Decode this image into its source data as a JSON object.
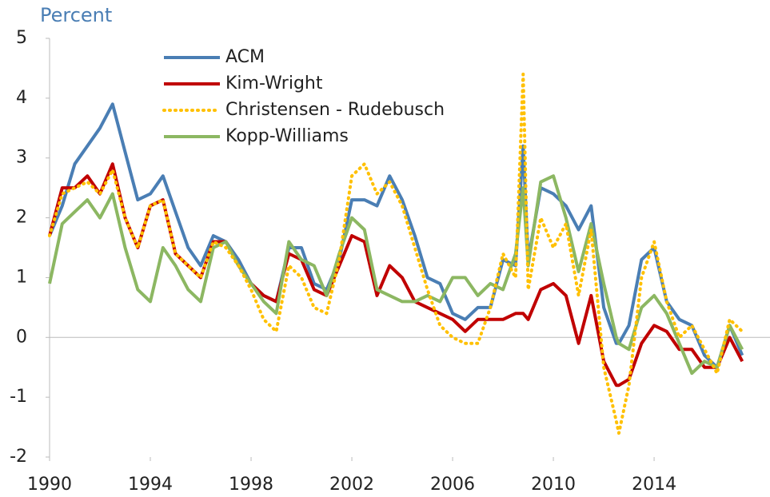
{
  "chart_data": {
    "type": "line",
    "title": "Percent",
    "x": [
      1990,
      1990.5,
      1991,
      1991.5,
      1992,
      1992.5,
      1993,
      1993.5,
      1994,
      1994.5,
      1995,
      1995.5,
      1996,
      1996.5,
      1997,
      1997.5,
      1998,
      1998.5,
      1999,
      1999.5,
      2000,
      2000.5,
      2001,
      2001.5,
      2002,
      2002.5,
      2003,
      2003.5,
      2004,
      2004.5,
      2005,
      2005.5,
      2006,
      2006.5,
      2007,
      2007.5,
      2008,
      2008.5,
      2008.8,
      2009,
      2009.5,
      2010,
      2010.5,
      2011,
      2011.5,
      2012,
      2012.5,
      2012.6,
      2013,
      2013.5,
      2014,
      2014.5,
      2015,
      2015.5,
      2016,
      2016.5,
      2017,
      2017.5
    ],
    "series": [
      {
        "name": "ACM",
        "color": "#4a7eb4",
        "style": "solid",
        "values": [
          1.7,
          2.2,
          2.9,
          3.2,
          3.5,
          3.9,
          3.1,
          2.3,
          2.4,
          2.7,
          2.1,
          1.5,
          1.2,
          1.7,
          1.6,
          1.3,
          0.9,
          0.7,
          0.6,
          1.5,
          1.5,
          0.9,
          0.8,
          1.3,
          2.3,
          2.3,
          2.2,
          2.7,
          2.3,
          1.7,
          1.0,
          0.9,
          0.4,
          0.3,
          0.5,
          0.5,
          1.3,
          1.2,
          3.2,
          1.3,
          2.5,
          2.4,
          2.2,
          1.8,
          2.2,
          0.5,
          -0.1,
          -0.1,
          0.2,
          1.3,
          1.5,
          0.6,
          0.3,
          0.2,
          -0.3,
          -0.5,
          0.2,
          -0.3
        ]
      },
      {
        "name": "Kim-Wright",
        "color": "#c00000",
        "style": "solid",
        "values": [
          1.7,
          2.5,
          2.5,
          2.7,
          2.4,
          2.9,
          2.0,
          1.5,
          2.2,
          2.3,
          1.4,
          1.2,
          1.0,
          1.6,
          1.6,
          1.2,
          0.9,
          0.7,
          0.6,
          1.4,
          1.3,
          0.8,
          0.7,
          1.2,
          1.7,
          1.6,
          0.7,
          1.2,
          1.0,
          0.6,
          0.5,
          0.4,
          0.3,
          0.1,
          0.3,
          0.3,
          0.3,
          0.4,
          0.4,
          0.3,
          0.8,
          0.9,
          0.7,
          -0.1,
          0.7,
          -0.4,
          -0.8,
          -0.8,
          -0.7,
          -0.1,
          0.2,
          0.1,
          -0.2,
          -0.2,
          -0.5,
          -0.5,
          0.0,
          -0.4
        ]
      },
      {
        "name": "Christensen - Rudebusch",
        "color": "#ffc000",
        "style": "dotted",
        "values": [
          1.7,
          2.4,
          2.5,
          2.6,
          2.4,
          2.8,
          2.0,
          1.5,
          2.2,
          2.3,
          1.4,
          1.2,
          1.0,
          1.6,
          1.5,
          1.2,
          0.8,
          0.3,
          0.1,
          1.2,
          1.0,
          0.5,
          0.4,
          1.3,
          2.7,
          2.9,
          2.4,
          2.6,
          2.2,
          1.5,
          0.8,
          0.2,
          0.0,
          -0.1,
          -0.1,
          0.5,
          1.4,
          1.0,
          4.4,
          0.8,
          2.0,
          1.5,
          1.9,
          0.7,
          1.8,
          -0.5,
          -1.4,
          -1.6,
          -0.8,
          1.0,
          1.6,
          0.6,
          0.0,
          0.2,
          -0.2,
          -0.6,
          0.3,
          0.1
        ]
      },
      {
        "name": "Kopp-Williams",
        "color": "#8cb762",
        "style": "solid",
        "values": [
          0.9,
          1.9,
          2.1,
          2.3,
          2.0,
          2.4,
          1.5,
          0.8,
          0.6,
          1.5,
          1.2,
          0.8,
          0.6,
          1.5,
          1.6,
          1.2,
          0.9,
          0.6,
          0.4,
          1.6,
          1.3,
          1.2,
          0.7,
          1.4,
          2.0,
          1.8,
          0.8,
          0.7,
          0.6,
          0.6,
          0.7,
          0.6,
          1.0,
          1.0,
          0.7,
          0.9,
          0.8,
          1.4,
          2.5,
          1.2,
          2.6,
          2.7,
          2.0,
          1.1,
          1.9,
          0.9,
          0.0,
          -0.1,
          -0.2,
          0.5,
          0.7,
          0.4,
          -0.1,
          -0.6,
          -0.4,
          -0.5,
          0.2,
          -0.2
        ]
      }
    ],
    "xlim": [
      1990,
      2018.6
    ],
    "xticks": [
      1990,
      1994,
      1998,
      2002,
      2006,
      2010,
      2014
    ],
    "ylim": [
      -2,
      5
    ],
    "yticks": [
      -2,
      -1,
      0,
      1,
      2,
      3,
      4,
      5
    ],
    "grid": false,
    "legend": "upper left"
  }
}
